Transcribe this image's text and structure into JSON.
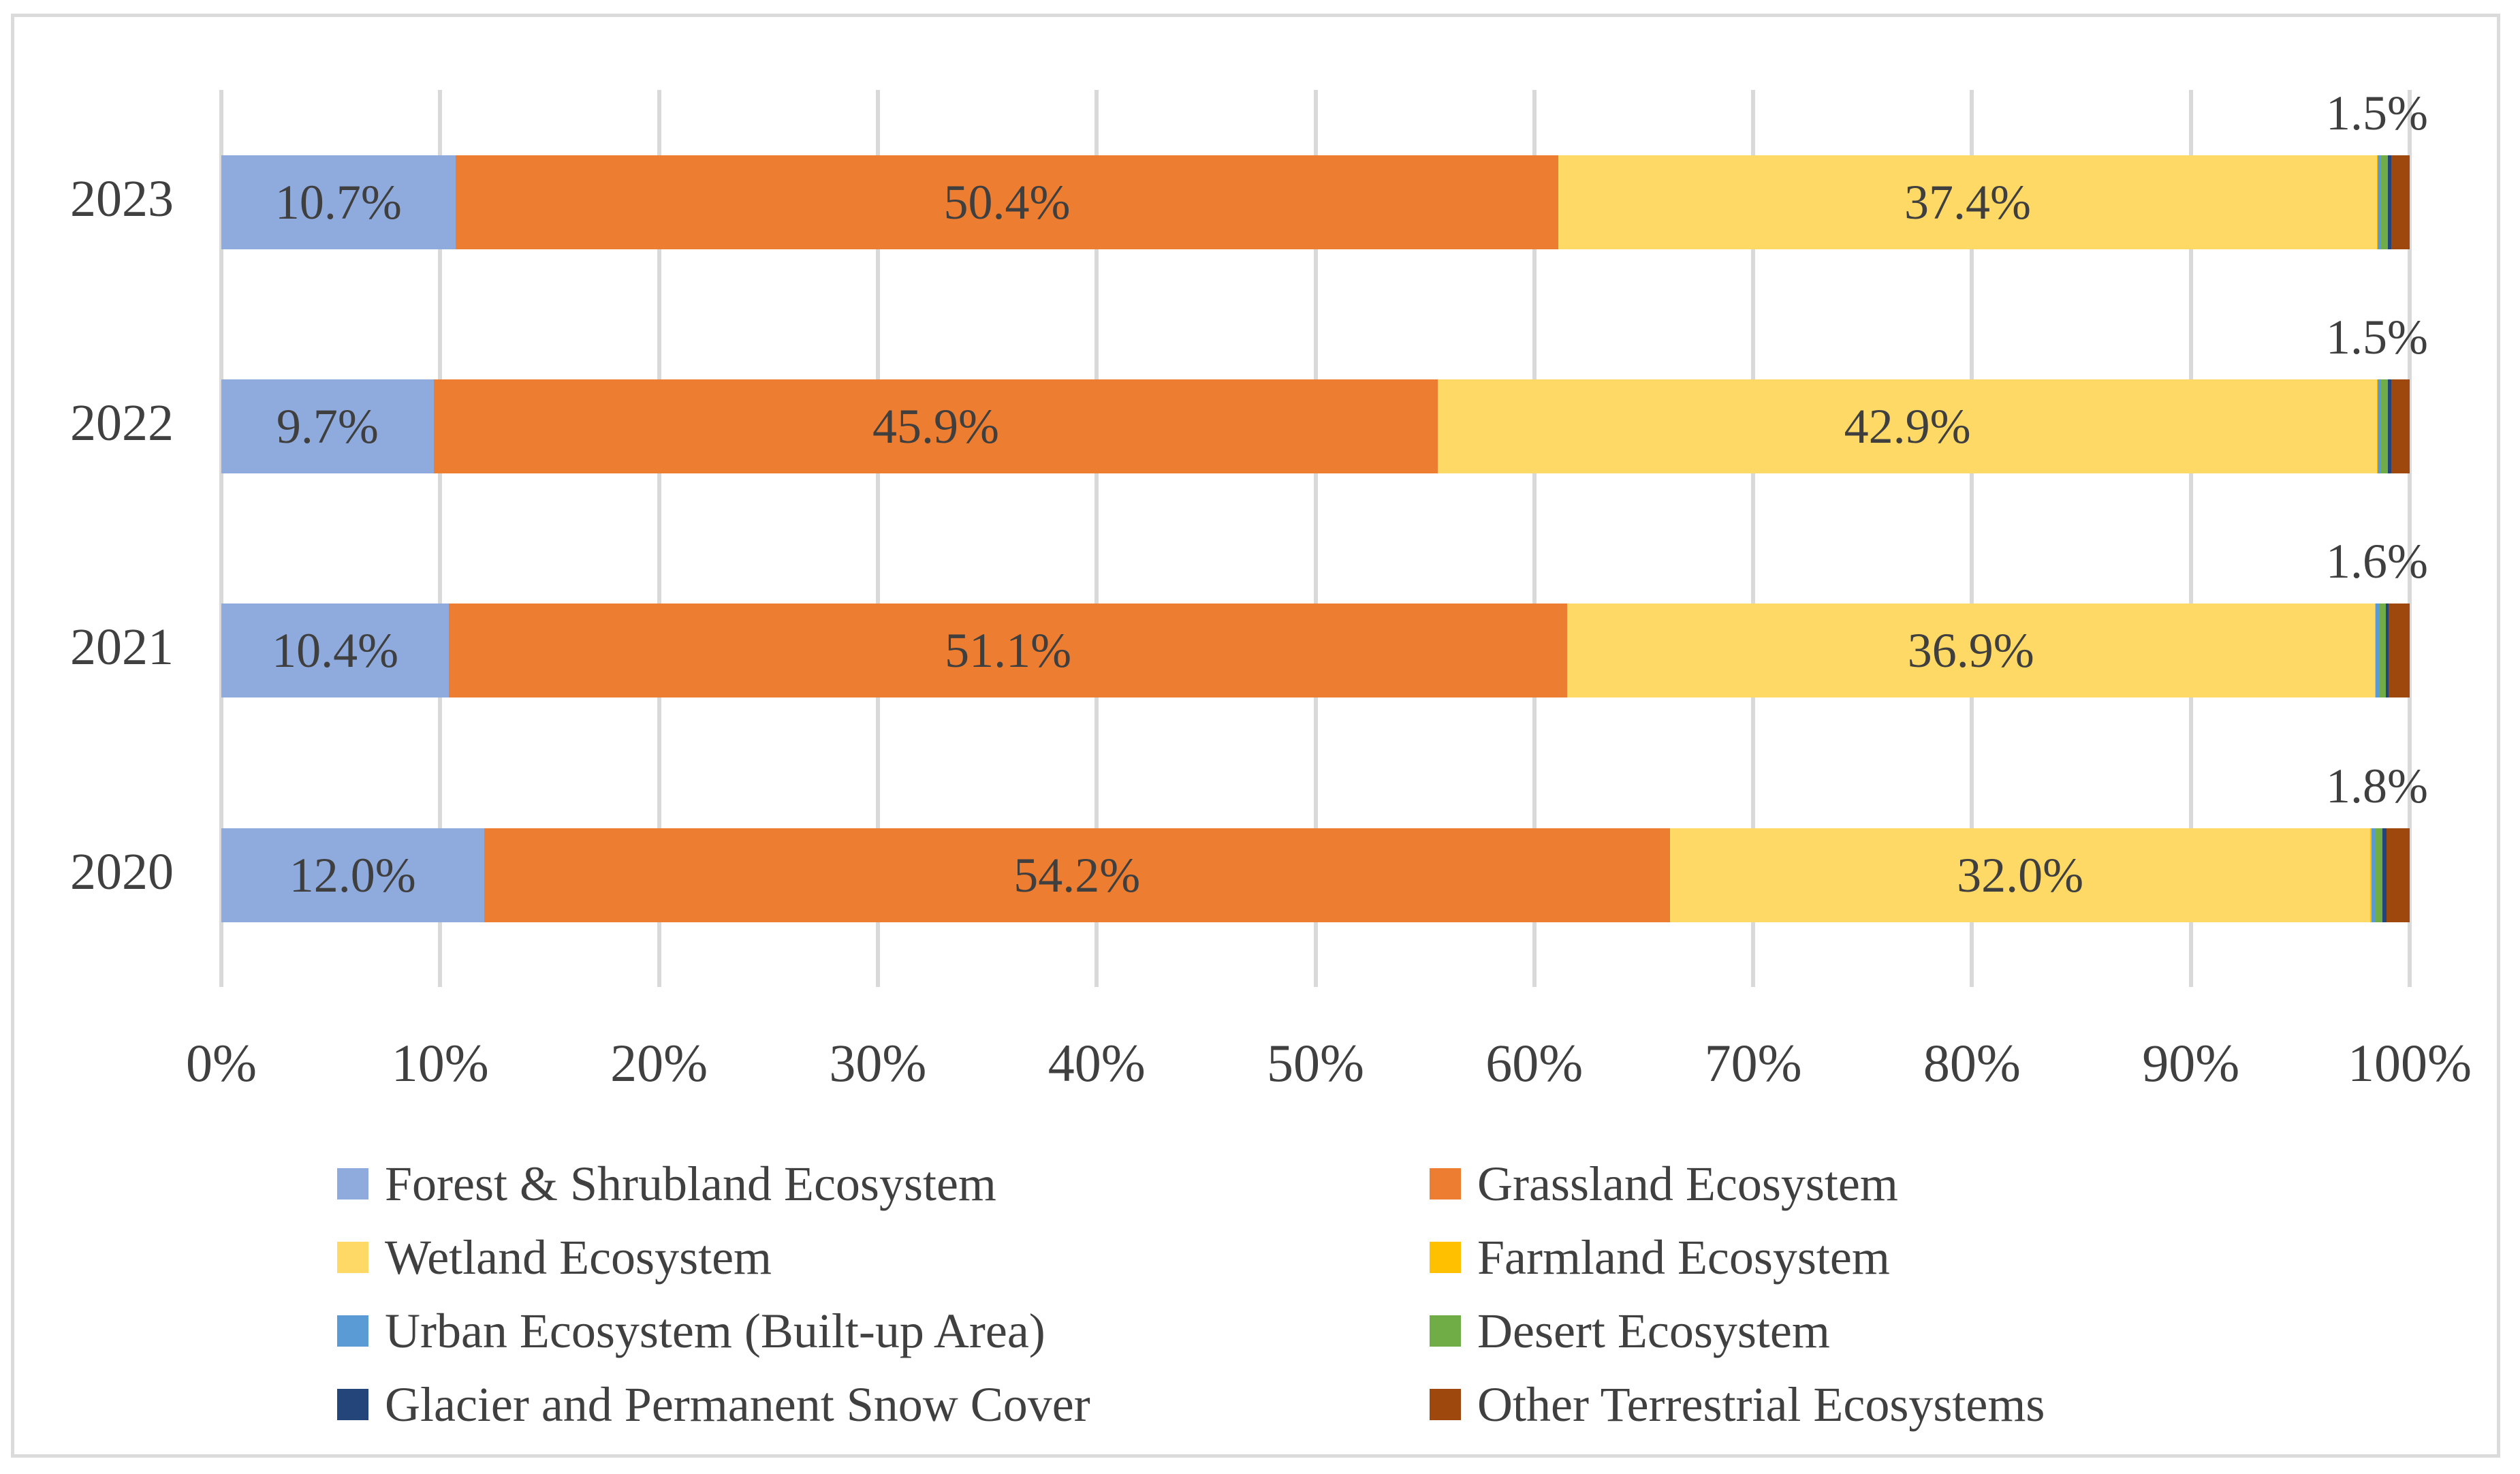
{
  "figure": {
    "background": "#FFFFFF",
    "border_color": "#DBDBDB",
    "gridline_color": "#D9D9D9",
    "text_color": "#404040"
  },
  "chart_data": {
    "type": "bar",
    "orientation": "horizontal",
    "stacked": true,
    "units": "percent",
    "title": "",
    "xlabel": "",
    "ylabel": "",
    "xlim": [
      0,
      100
    ],
    "grid": "vertical-only",
    "legend_position": "bottom-two-columns",
    "categories": [
      "2023",
      "2022",
      "2021",
      "2020"
    ],
    "series": [
      {
        "name": "Forest & Shrubland Ecosystem",
        "color": "#8FAADC",
        "labeled": true,
        "values": [
          10.7,
          9.7,
          10.4,
          12.0
        ]
      },
      {
        "name": "Grassland Ecosystem",
        "color": "#ED7D31",
        "labeled": true,
        "values": [
          50.4,
          45.9,
          51.1,
          54.2
        ]
      },
      {
        "name": "Wetland Ecosystem",
        "color": "#FFD966",
        "labeled": true,
        "values": [
          37.4,
          42.9,
          36.9,
          32.0
        ]
      },
      {
        "name": "Farmland Ecosystem",
        "color": "#FFC000",
        "labeled": false,
        "values": [
          0.05,
          0.05,
          0.05,
          0.05
        ]
      },
      {
        "name": "Urban Ecosystem (Built-up Area)",
        "color": "#5B9BD5",
        "labeled": false,
        "values": [
          0.15,
          0.15,
          0.15,
          0.2
        ]
      },
      {
        "name": "Desert Ecosystem",
        "color": "#70AD47",
        "labeled": false,
        "values": [
          0.3,
          0.3,
          0.3,
          0.3
        ]
      },
      {
        "name": "Glacier and Permanent Snow Cover",
        "color": "#24457A",
        "labeled": false,
        "values": [
          0.15,
          0.15,
          0.15,
          0.2
        ]
      },
      {
        "name": "Other Terrestrial Ecosystems",
        "color": "#9E480E",
        "labeled": false,
        "values": [
          0.85,
          0.85,
          0.95,
          1.05
        ]
      }
    ],
    "outside_end_labels": [
      "1.5%",
      "1.5%",
      "1.6%",
      "1.8%"
    ],
    "x_ticks": [
      "0%",
      "10%",
      "20%",
      "30%",
      "40%",
      "50%",
      "60%",
      "70%",
      "80%",
      "90%",
      "100%"
    ]
  },
  "legend": {
    "items": [
      {
        "label": "Forest & Shrubland Ecosystem",
        "color": "#8FAADC"
      },
      {
        "label": "Grassland Ecosystem",
        "color": "#ED7D31"
      },
      {
        "label": "Wetland Ecosystem",
        "color": "#FFD966"
      },
      {
        "label": "Farmland Ecosystem",
        "color": "#FFC000"
      },
      {
        "label": "Urban Ecosystem (Built-up Area)",
        "color": "#5B9BD5"
      },
      {
        "label": "Desert Ecosystem",
        "color": "#70AD47"
      },
      {
        "label": "Glacier and Permanent Snow Cover",
        "color": "#24457A"
      },
      {
        "label": "Other Terrestrial Ecosystems",
        "color": "#9E480E"
      }
    ]
  }
}
